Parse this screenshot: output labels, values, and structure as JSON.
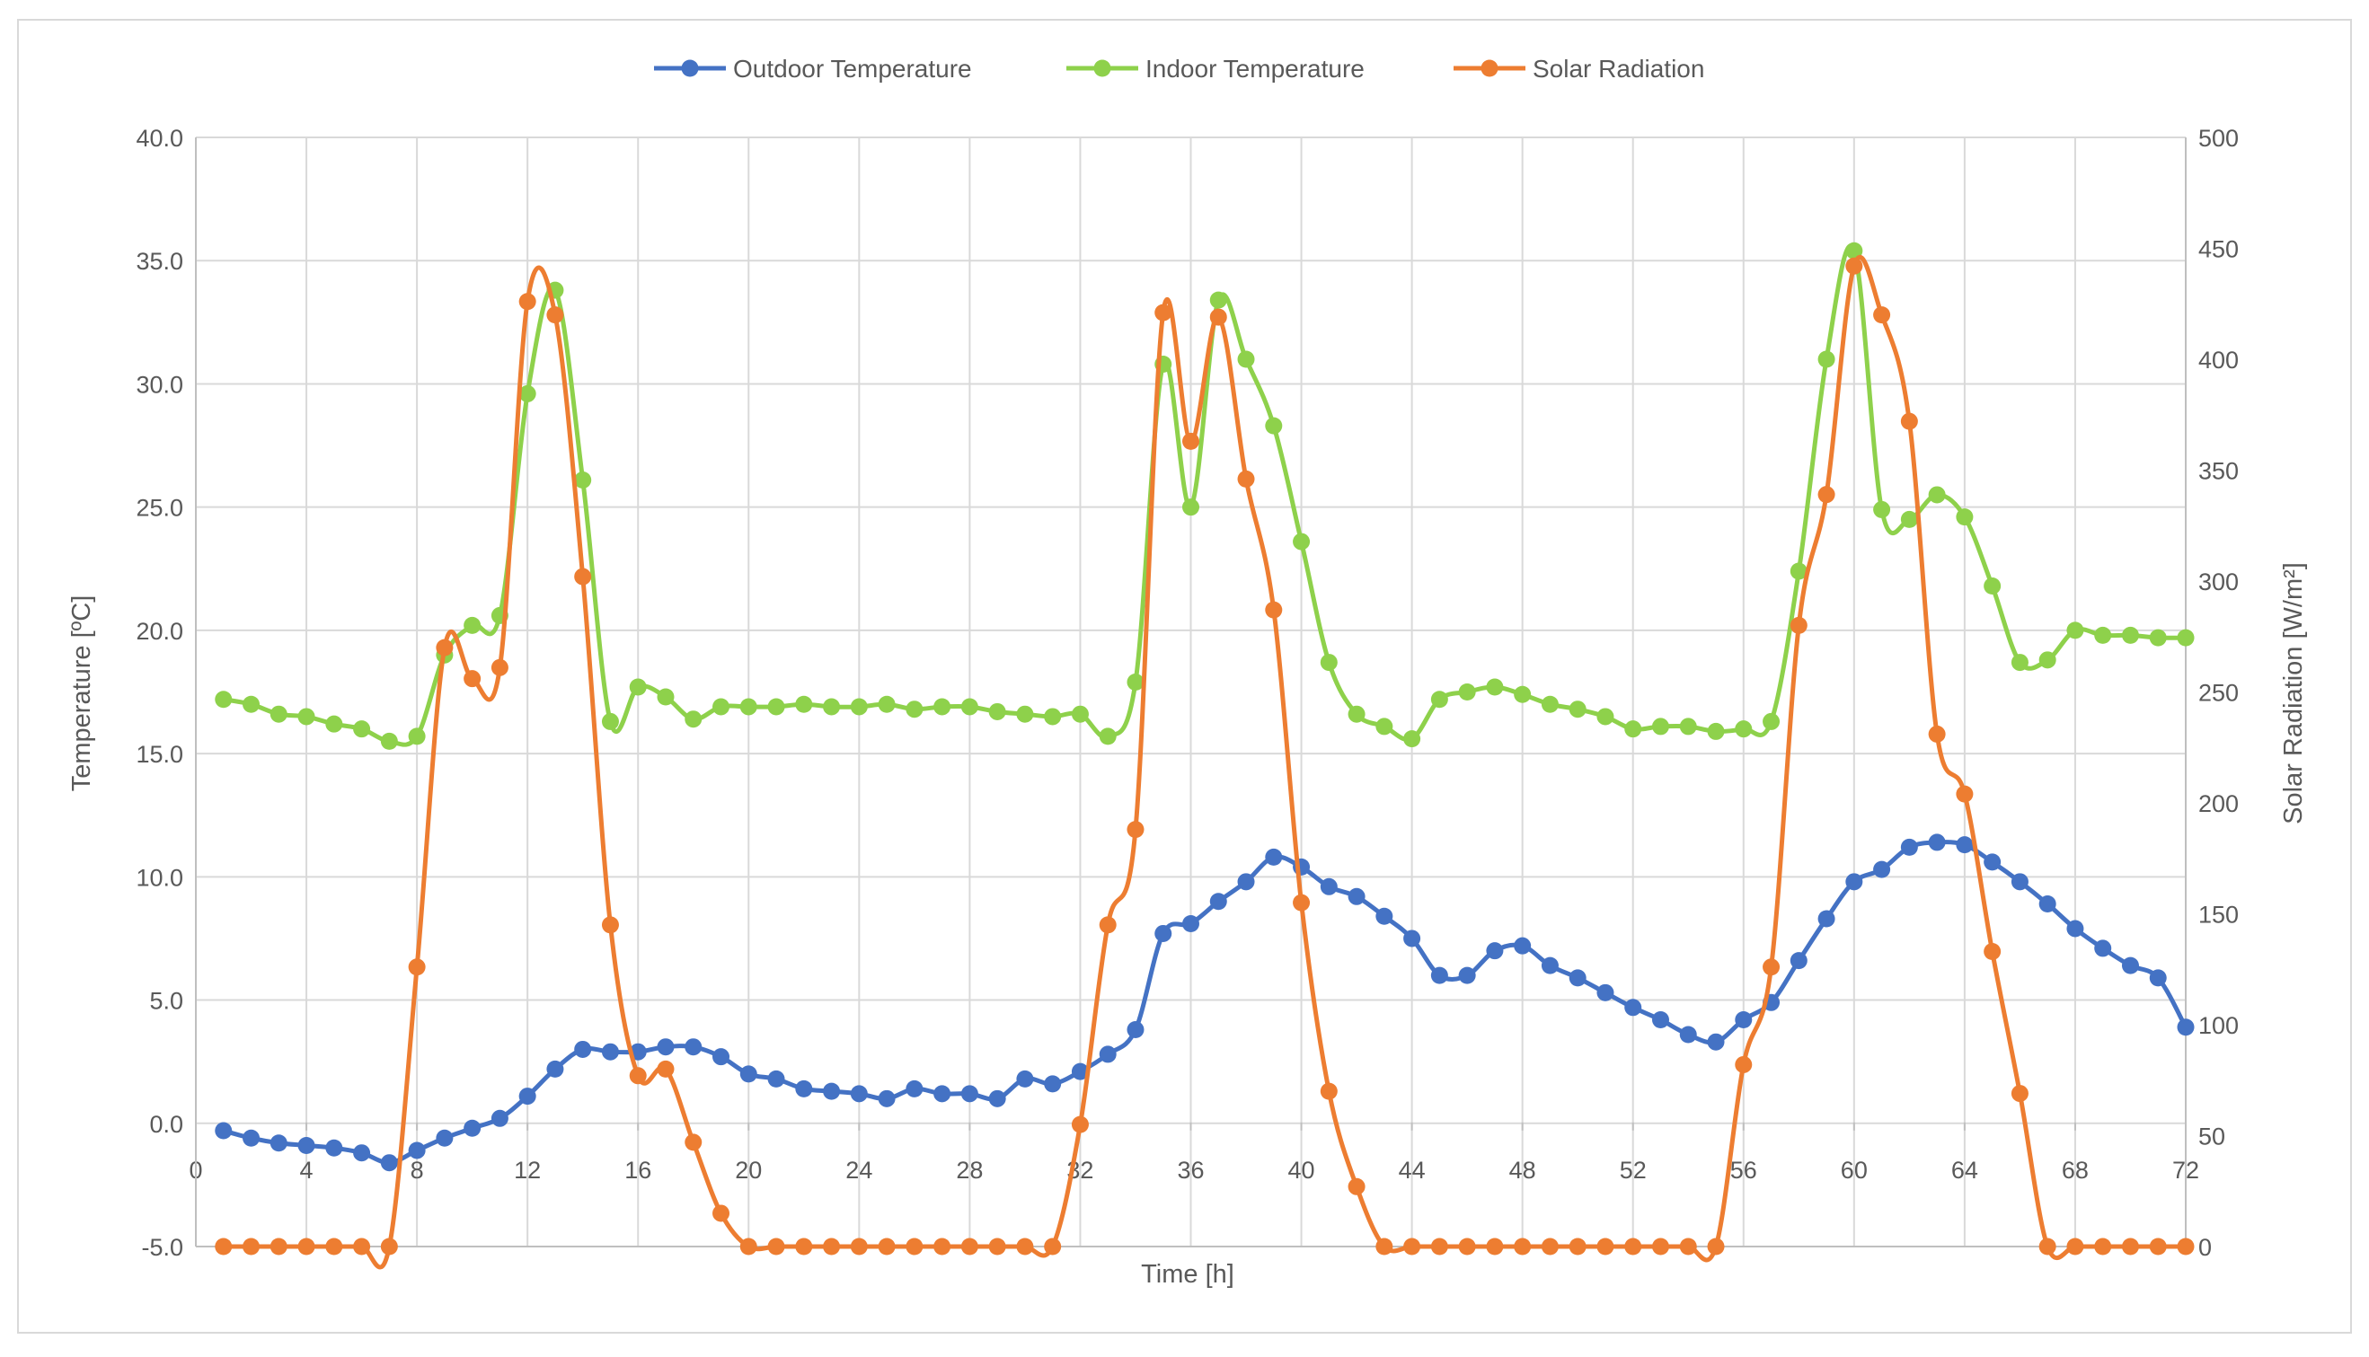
{
  "chart_data": {
    "type": "line",
    "smooth": true,
    "xlabel": "Time [h]",
    "ylabel": "Temperature [ºC]",
    "y2label": "Solar Radiation [W/m²]",
    "xlim": [
      0,
      72
    ],
    "ylim": [
      -5,
      40
    ],
    "y2lim": [
      0,
      500
    ],
    "x_ticks": [
      "0",
      "4",
      "8",
      "12",
      "16",
      "20",
      "24",
      "28",
      "32",
      "36",
      "40",
      "44",
      "48",
      "52",
      "56",
      "60",
      "64",
      "68",
      "72"
    ],
    "y_ticks": [
      "-5.0",
      "0.0",
      "5.0",
      "10.0",
      "15.0",
      "20.0",
      "25.0",
      "30.0",
      "35.0",
      "40.0"
    ],
    "y2_ticks": [
      "0",
      "50",
      "100",
      "150",
      "200",
      "250",
      "300",
      "350",
      "400",
      "450",
      "500"
    ],
    "grid": true,
    "legend_position": "top",
    "x": [
      1,
      2,
      3,
      4,
      5,
      6,
      7,
      8,
      9,
      10,
      11,
      12,
      13,
      14,
      15,
      16,
      17,
      18,
      19,
      20,
      21,
      22,
      23,
      24,
      25,
      26,
      27,
      28,
      29,
      30,
      31,
      32,
      33,
      34,
      35,
      36,
      37,
      38,
      39,
      40,
      41,
      42,
      43,
      44,
      45,
      46,
      47,
      48,
      49,
      50,
      51,
      52,
      53,
      54,
      55,
      56,
      57,
      58,
      59,
      60,
      61,
      62,
      63,
      64,
      65,
      66,
      67,
      68,
      69,
      70,
      71,
      72
    ],
    "series": [
      {
        "name": "Outdoor Temperature",
        "axis": "left",
        "color": "#4472C4",
        "values": [
          -0.3,
          -0.6,
          -0.8,
          -0.9,
          -1.0,
          -1.2,
          -1.6,
          -1.1,
          -0.6,
          -0.2,
          0.2,
          1.1,
          2.2,
          3.0,
          2.9,
          2.9,
          3.1,
          3.1,
          2.7,
          2.0,
          1.8,
          1.4,
          1.3,
          1.2,
          1.0,
          1.4,
          1.2,
          1.2,
          1.0,
          1.8,
          1.6,
          2.1,
          2.8,
          3.8,
          7.7,
          8.1,
          9.0,
          9.8,
          10.8,
          10.4,
          9.6,
          9.2,
          8.4,
          7.5,
          6.0,
          6.0,
          7.0,
          7.2,
          6.4,
          5.9,
          5.3,
          4.7,
          4.2,
          3.6,
          3.3,
          4.2,
          4.9,
          6.6,
          8.3,
          9.8,
          10.3,
          11.2,
          11.4,
          11.3,
          10.6,
          9.8,
          8.9,
          7.9,
          7.1,
          6.4,
          5.9,
          3.9
        ]
      },
      {
        "name": "Indoor Temperature",
        "axis": "left",
        "color": "#8ED14B",
        "values": [
          17.2,
          17.0,
          16.6,
          16.5,
          16.2,
          16.0,
          15.5,
          15.7,
          19.0,
          20.2,
          20.6,
          29.6,
          33.8,
          26.1,
          16.3,
          17.7,
          17.3,
          16.4,
          16.9,
          16.9,
          16.9,
          17.0,
          16.9,
          16.9,
          17.0,
          16.8,
          16.9,
          16.9,
          16.7,
          16.6,
          16.5,
          16.6,
          15.7,
          17.9,
          30.8,
          25.0,
          33.4,
          31.0,
          28.3,
          23.6,
          18.7,
          16.6,
          16.1,
          15.6,
          17.2,
          17.5,
          17.7,
          17.4,
          17.0,
          16.8,
          16.5,
          16.0,
          16.1,
          16.1,
          15.9,
          16.0,
          16.3,
          22.4,
          31.0,
          35.4,
          24.9,
          24.5,
          25.5,
          24.6,
          21.8,
          18.7,
          18.8,
          20.0,
          19.8,
          19.8,
          19.7,
          19.7
        ]
      },
      {
        "name": "Solar Radiation",
        "axis": "right",
        "color": "#ED7D31",
        "values": [
          0,
          0,
          0,
          0,
          0,
          0,
          0,
          126,
          270,
          256,
          261,
          426,
          420,
          302,
          145,
          77,
          80,
          47,
          15,
          0,
          0,
          0,
          0,
          0,
          0,
          0,
          0,
          0,
          0,
          0,
          0,
          55,
          145,
          188,
          421,
          363,
          419,
          346,
          287,
          155,
          70,
          27,
          0,
          0,
          0,
          0,
          0,
          0,
          0,
          0,
          0,
          0,
          0,
          0,
          0,
          82,
          126,
          280,
          339,
          442,
          420,
          372,
          231,
          204,
          133,
          69,
          0,
          0,
          0,
          0,
          0,
          0
        ]
      }
    ]
  }
}
